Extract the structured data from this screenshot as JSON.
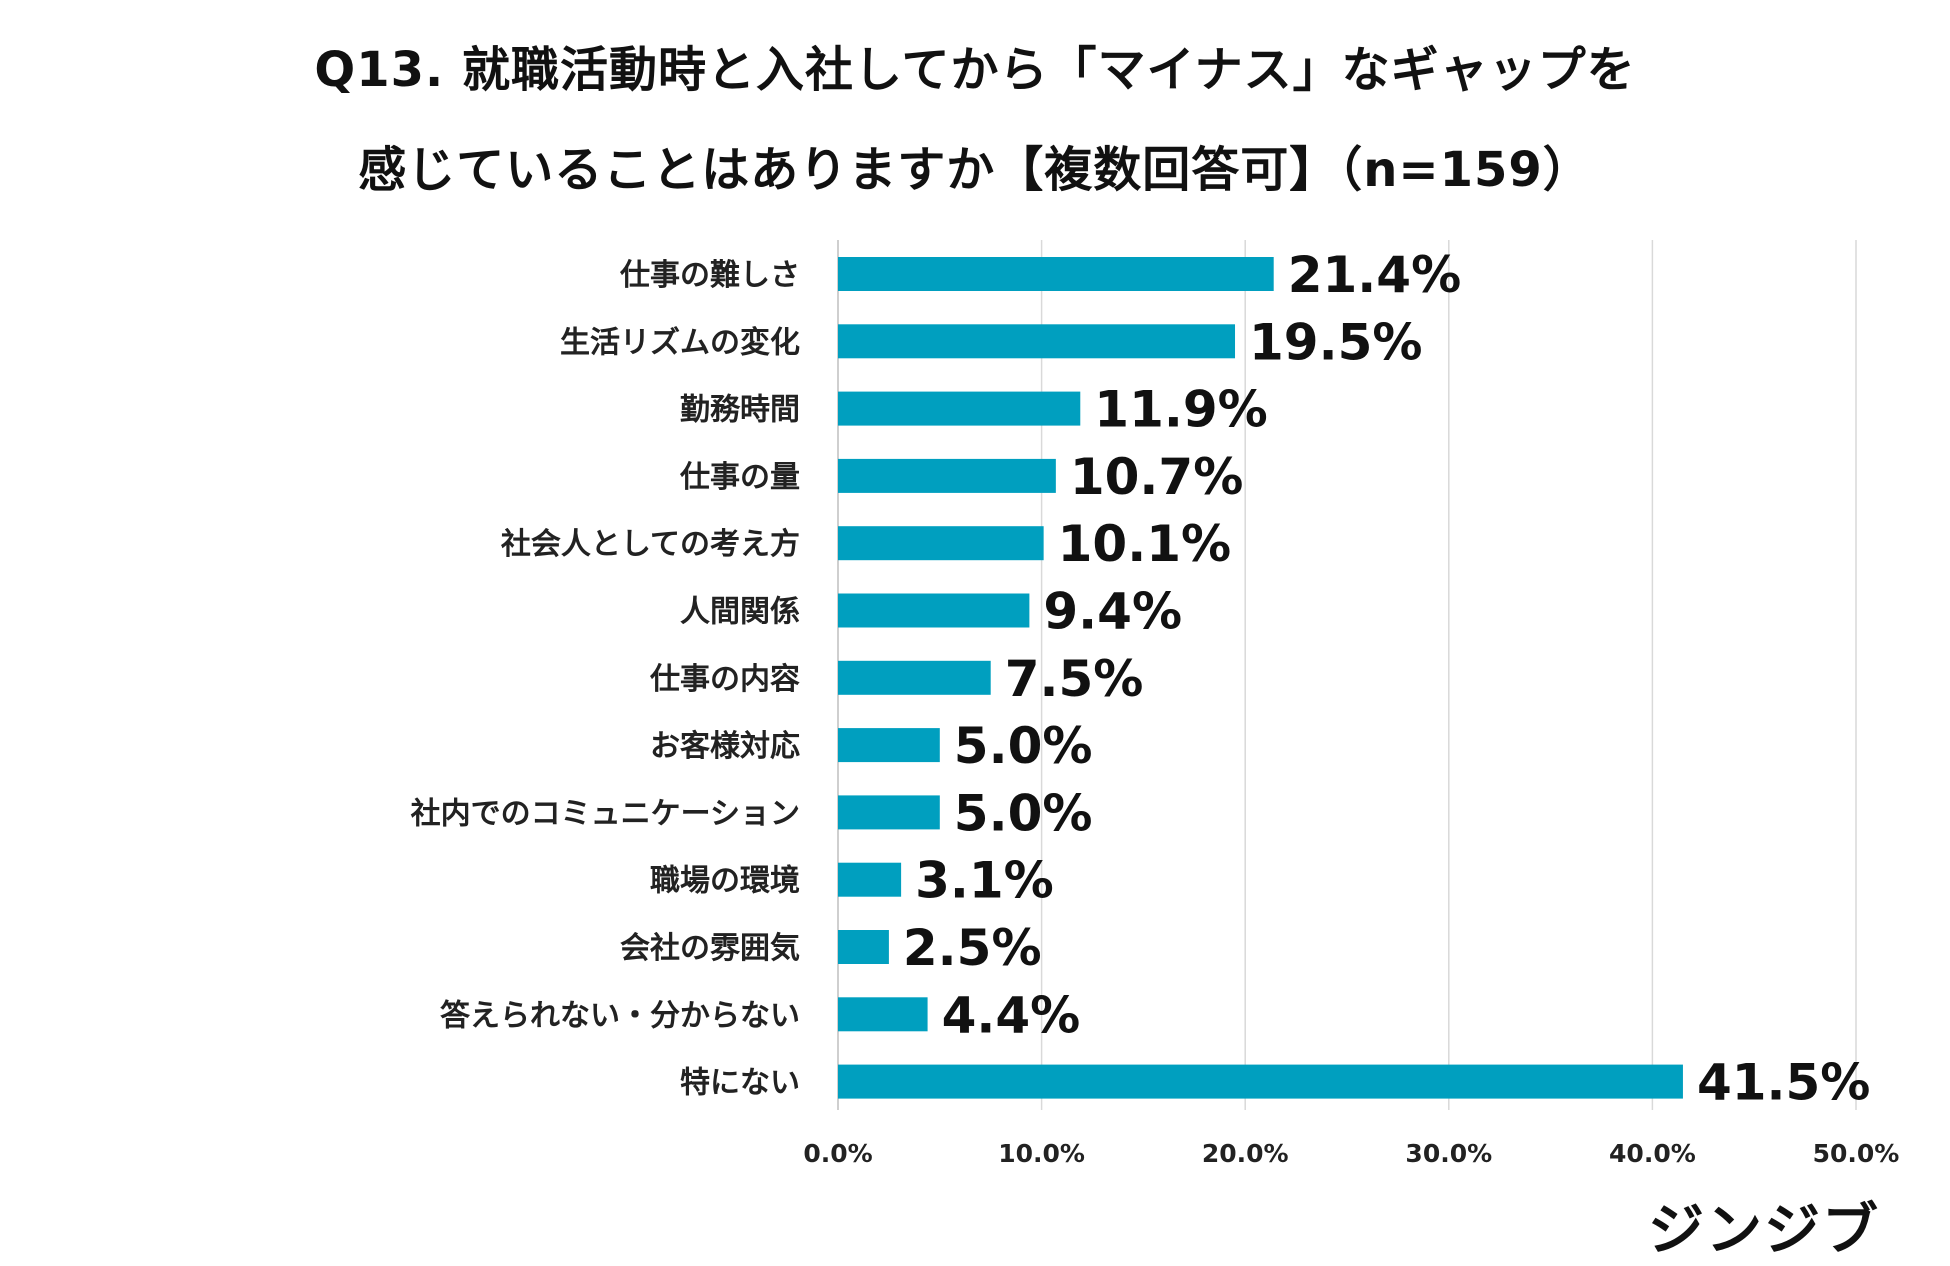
{
  "title_line_1": "Q13. 就職活動時と入社してから「マイナス」なギャップを",
  "title_line_2": "感じていることはありますか【複数回答可】（n=159）",
  "logo_text": "ジンジブ",
  "colors": {
    "bar": "#009fbf",
    "grid": "#d9d9d9",
    "axis": "#bfbfbf"
  },
  "chart_data": {
    "type": "bar",
    "orientation": "horizontal",
    "categories": [
      "仕事の難しさ",
      "生活リズムの変化",
      "勤務時間",
      "仕事の量",
      "社会人としての考え方",
      "人間関係",
      "仕事の内容",
      "お客様対応",
      "社内でのコミュニケーション",
      "職場の環境",
      "会社の雰囲気",
      "答えられない・分からない",
      "特にない"
    ],
    "values": [
      21.4,
      19.5,
      11.9,
      10.7,
      10.1,
      9.4,
      7.5,
      5.0,
      5.0,
      3.1,
      2.5,
      4.4,
      41.5
    ],
    "value_labels": [
      "21.4%",
      "19.5%",
      "11.9%",
      "10.7%",
      "10.1%",
      "9.4%",
      "7.5%",
      "5.0%",
      "5.0%",
      "3.1%",
      "2.5%",
      "4.4%",
      "41.5%"
    ],
    "xlim": [
      0,
      50
    ],
    "x_ticks": [
      0,
      10,
      20,
      30,
      40,
      50
    ],
    "x_tick_labels": [
      "0.0%",
      "10.0%",
      "20.0%",
      "30.0%",
      "40.0%",
      "50.0%"
    ],
    "grid": true
  }
}
